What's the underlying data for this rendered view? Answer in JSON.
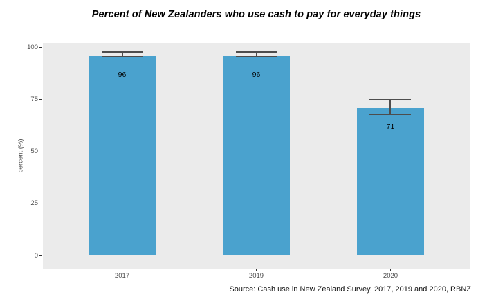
{
  "chart_data": {
    "type": "bar",
    "title": "Percent of New Zealanders who use cash to pay for everyday things",
    "xlabel": "",
    "ylabel": "percent (%)",
    "categories": [
      "2017",
      "2019",
      "2020"
    ],
    "values": [
      96,
      96,
      71
    ],
    "bar_labels": [
      "96",
      "96",
      "71"
    ],
    "error_bars": [
      {
        "upper": 97.7,
        "lower": 95.5
      },
      {
        "upper": 97.7,
        "lower": 95.5
      },
      {
        "upper": 75,
        "lower": 68
      }
    ],
    "ylim": [
      0,
      100
    ],
    "yticks": [
      0,
      25,
      50,
      75,
      100
    ],
    "grid": false,
    "legend": false,
    "source": "Source: Cash use in New Zealand Survey, 2017, 2019 and 2020, RBNZ",
    "colors": {
      "bar": "#4aa2ce",
      "panel_background": "#ebebeb",
      "axis_text": "#4d4d4d",
      "tick_mark": "#333333",
      "error_bar": "#4d4d4d",
      "title_text": "#000000",
      "caption_text": "#111111"
    }
  }
}
